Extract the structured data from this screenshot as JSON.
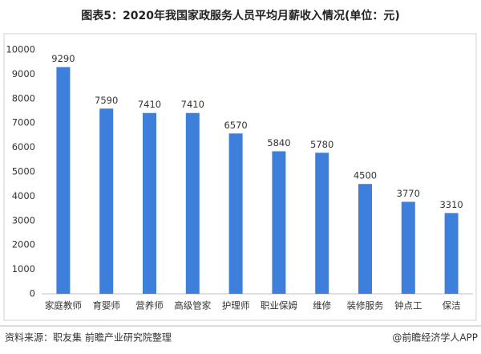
{
  "chart_data": {
    "type": "bar",
    "title": "图表5：2020年我国家政服务人员平均月薪收入情况(单位：元)",
    "categories": [
      "家庭教师",
      "育婴师",
      "营养师",
      "高级管家",
      "护理师",
      "职业保姆",
      "维修",
      "装修服务",
      "钟点工",
      "保洁"
    ],
    "values": [
      9290,
      7590,
      7410,
      7410,
      6570,
      5840,
      5780,
      4500,
      3770,
      3310
    ],
    "color": "#3f7fdc",
    "ylim": [
      0,
      10000
    ],
    "yticks": [
      0,
      1000,
      2000,
      3000,
      4000,
      5000,
      6000,
      7000,
      8000,
      9000,
      10000
    ],
    "grid": false,
    "source": "资料来源：职友集 前瞻产业研究院整理",
    "brand": "@前瞻经济学人APP"
  }
}
